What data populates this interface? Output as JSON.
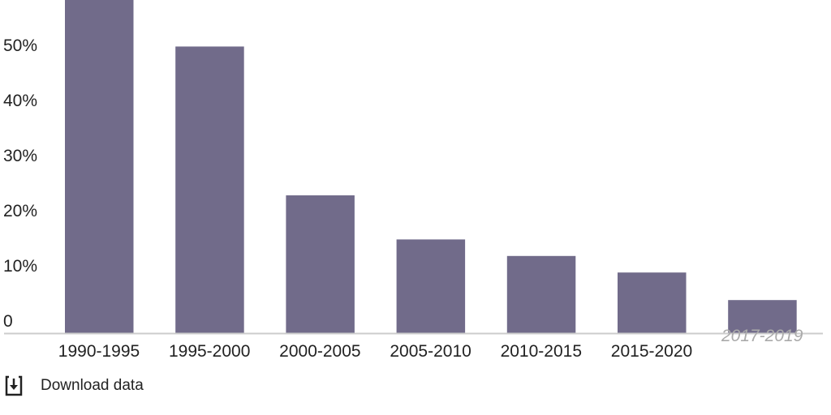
{
  "chart_data": {
    "type": "bar",
    "categories": [
      "1990-1995",
      "1995-2000",
      "2000-2005",
      "2005-2010",
      "2010-2015",
      "2015-2020",
      "2017-2019"
    ],
    "values": [
      61,
      52,
      25,
      17,
      14,
      11,
      6
    ],
    "muted_categories": [
      "2017-2019"
    ],
    "yticks": [
      "0",
      "10%",
      "20%",
      "30%",
      "40%",
      "50%"
    ],
    "ytick_values": [
      0,
      10,
      20,
      30,
      40,
      50
    ],
    "ylim": [
      0,
      60.4
    ],
    "grid": false,
    "bar_color": "#716b8a",
    "axis_color": "#cccccc"
  },
  "footer": {
    "download_label": "Download data",
    "download_icon": "download-icon"
  }
}
